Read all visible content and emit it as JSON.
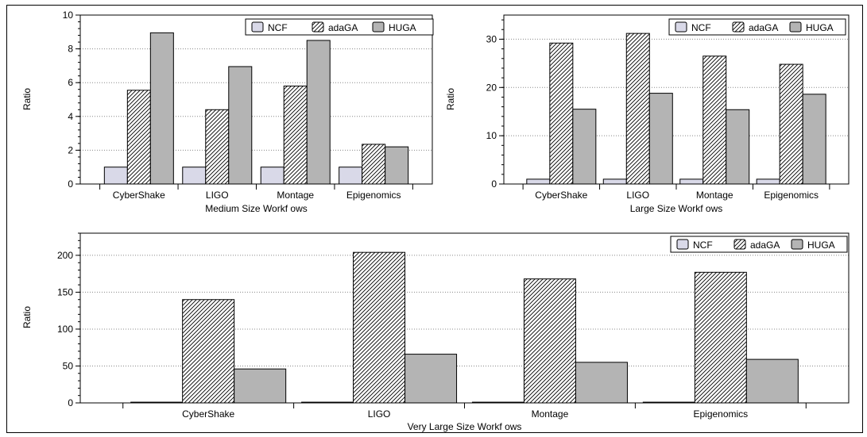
{
  "chart_data": [
    {
      "type": "bar",
      "xlabel": "Medium Size Workf ows",
      "ylabel": "Ratio",
      "categories": [
        "CyberShake",
        "LIGO",
        "Montage",
        "Epigenomics"
      ],
      "series": [
        {
          "name": "NCF",
          "values": [
            1,
            1,
            1,
            1
          ],
          "color": "#d9d9e8",
          "pattern": "solid"
        },
        {
          "name": "adaGA",
          "values": [
            5.55,
            4.4,
            5.8,
            2.35
          ],
          "color": "#ffffff",
          "pattern": "hatch"
        },
        {
          "name": "HUGA",
          "values": [
            8.95,
            6.95,
            8.5,
            2.2
          ],
          "color": "#b4b4b4",
          "pattern": "solid"
        }
      ],
      "ylim": [
        0,
        10
      ],
      "yticks": [
        0,
        2,
        4,
        6,
        8,
        10
      ],
      "yticks_labels": [
        "0",
        "2",
        "4",
        "6",
        "8",
        "10"
      ],
      "grid": "horizontal dotted",
      "legend": "top-right"
    },
    {
      "type": "bar",
      "xlabel": "Large Size Workf ows",
      "ylabel": "Ratio",
      "categories": [
        "CyberShake",
        "LIGO",
        "Montage",
        "Epigenomics"
      ],
      "series": [
        {
          "name": "NCF",
          "values": [
            1,
            1,
            1,
            1
          ],
          "color": "#d9d9e8",
          "pattern": "solid"
        },
        {
          "name": "adaGA",
          "values": [
            29.2,
            31.2,
            26.5,
            24.8
          ],
          "color": "#ffffff",
          "pattern": "hatch"
        },
        {
          "name": "HUGA",
          "values": [
            15.5,
            18.8,
            15.4,
            18.6
          ],
          "color": "#b4b4b4",
          "pattern": "solid"
        }
      ],
      "ylim": [
        0,
        35
      ],
      "yticks": [
        0,
        10,
        20,
        30
      ],
      "yticks_labels": [
        "0",
        "10",
        "20",
        "30"
      ],
      "grid": "horizontal dotted",
      "legend": "top-right"
    },
    {
      "type": "bar",
      "xlabel": "Very Large Size Workf ows",
      "ylabel": "Ratio",
      "categories": [
        "CyberShake",
        "LIGO",
        "Montage",
        "Epigenomics"
      ],
      "series": [
        {
          "name": "NCF",
          "values": [
            1,
            1,
            1,
            1
          ],
          "color": "#d9d9e8",
          "pattern": "solid"
        },
        {
          "name": "adaGA",
          "values": [
            140,
            204,
            168,
            177
          ],
          "color": "#ffffff",
          "pattern": "hatch"
        },
        {
          "name": "HUGA",
          "values": [
            46,
            66,
            55,
            59
          ],
          "color": "#b4b4b4",
          "pattern": "solid"
        }
      ],
      "ylim": [
        0,
        230
      ],
      "yticks": [
        0,
        50,
        100,
        150,
        200
      ],
      "yticks_labels": [
        "0",
        "50",
        "100",
        "150",
        "200"
      ],
      "grid": "horizontal dotted",
      "legend": "top-right"
    }
  ]
}
